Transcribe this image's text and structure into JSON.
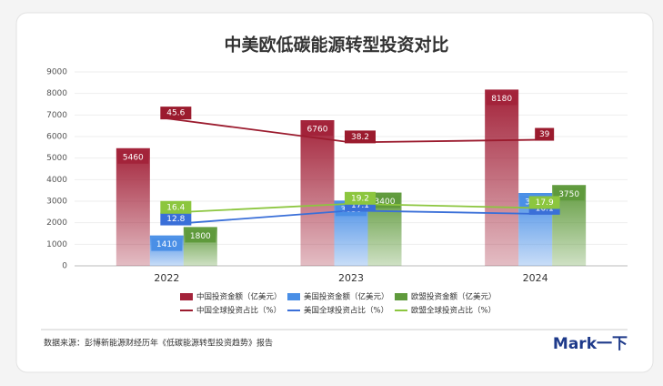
{
  "chart_data": {
    "type": "bar",
    "title": "中美欧低碳能源转型投资对比",
    "categories": [
      "2022",
      "2023",
      "2024"
    ],
    "ylim": [
      0,
      9000
    ],
    "yticks": [
      0,
      1000,
      2000,
      3000,
      4000,
      5000,
      6000,
      7000,
      8000,
      9000
    ],
    "y2lim": [
      0,
      60
    ],
    "series": [
      {
        "name": "中国投资金额（亿美元）",
        "type": "bar",
        "color": "#a3233a",
        "values": [
          5460,
          6760,
          8180
        ]
      },
      {
        "name": "美国投资金额（亿美元）",
        "type": "bar",
        "color": "#4a8fe6",
        "values": [
          1410,
          3030,
          3380
        ]
      },
      {
        "name": "欧盟投资金额（亿美元）",
        "type": "bar",
        "color": "#5f9a3c",
        "values": [
          1800,
          3400,
          3750
        ]
      },
      {
        "name": "中国全球投资占比（%）",
        "type": "line",
        "axis": "y2",
        "color": "#9b1b2e",
        "values": [
          45.6,
          38.2,
          39
        ]
      },
      {
        "name": "美国全球投资占比（%）",
        "type": "line",
        "axis": "y2",
        "color": "#3a6fd8",
        "values": [
          12.8,
          17.1,
          16.1
        ]
      },
      {
        "name": "欧盟全球投资占比（%）",
        "type": "line",
        "axis": "y2",
        "color": "#8cc63f",
        "values": [
          16.4,
          19.2,
          17.9
        ]
      }
    ],
    "source": "数据来源：彭博新能源财经历年《低碳能源转型投资趋势》报告",
    "brand": "Mark一下"
  }
}
